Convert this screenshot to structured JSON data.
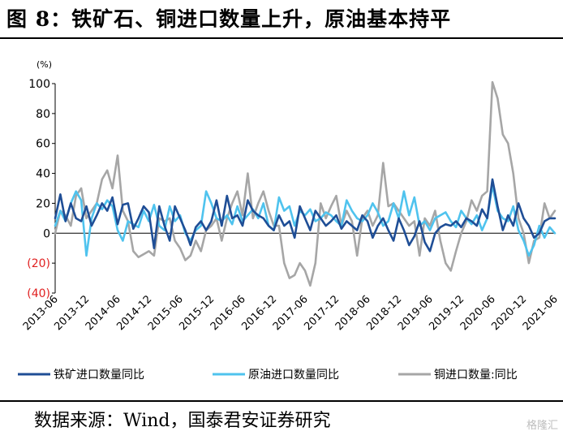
{
  "title": "图 8：铁矿石、铜进口数量上升，原油基本持平",
  "source": "数据来源：Wind，国泰君安证券研究",
  "watermark": "格隆汇",
  "chart_data": {
    "type": "line",
    "unit": "(%)",
    "ylim": [
      -40,
      100
    ],
    "yticks": [
      100,
      80,
      60,
      40,
      20,
      0,
      -20,
      -40
    ],
    "ytick_labels": [
      "100",
      "80",
      "60",
      "40",
      "20",
      "0",
      "(20)",
      "(40)"
    ],
    "xlim": [
      0,
      96
    ],
    "xtick_positions": [
      0,
      6,
      12,
      18,
      24,
      30,
      36,
      42,
      48,
      54,
      60,
      66,
      72,
      78,
      84,
      90,
      96
    ],
    "xtick_labels": [
      "2013-06",
      "2013-12",
      "2014-06",
      "2014-12",
      "2015-06",
      "2015-12",
      "2016-06",
      "2016-12",
      "2017-06",
      "2017-12",
      "2018-06",
      "2018-12",
      "2019-06",
      "2019-12",
      "2020-06",
      "2020-12",
      "2021-06"
    ],
    "grid": false,
    "legend_position": "bottom",
    "series": [
      {
        "name": "铁矿进口数量同比",
        "color": "#1f4e96",
        "values": [
          10,
          26,
          8,
          20,
          10,
          8,
          18,
          5,
          12,
          20,
          15,
          24,
          6,
          19,
          20,
          3,
          10,
          18,
          14,
          -10,
          18,
          5,
          -5,
          18,
          10,
          2,
          -8,
          4,
          8,
          2,
          8,
          22,
          5,
          25,
          10,
          12,
          5,
          22,
          15,
          12,
          10,
          5,
          2,
          12,
          5,
          8,
          -3,
          18,
          10,
          2,
          15,
          10,
          5,
          8,
          12,
          3,
          8,
          5,
          2,
          12,
          8,
          -3,
          5,
          10,
          2,
          -5,
          10,
          2,
          -8,
          -2,
          8,
          -6,
          -12,
          0,
          4,
          6,
          5,
          8,
          4,
          10,
          8,
          5,
          16,
          10,
          36,
          18,
          2,
          12,
          5,
          20,
          10,
          5,
          -3,
          0,
          8,
          10,
          10
        ]
      },
      {
        "name": "原油进口数量同比",
        "color": "#4fc3ee",
        "values": [
          5,
          15,
          8,
          20,
          28,
          22,
          -15,
          10,
          20,
          16,
          22,
          18,
          2,
          -5,
          8,
          6,
          4,
          15,
          8,
          19,
          5,
          2,
          18,
          8,
          12,
          0,
          -5,
          2,
          5,
          28,
          20,
          10,
          8,
          12,
          6,
          18,
          8,
          12,
          16,
          10,
          20,
          5,
          2,
          24,
          15,
          18,
          5,
          15,
          12,
          16,
          8,
          10,
          14,
          12,
          8,
          5,
          22,
          15,
          10,
          8,
          12,
          20,
          14,
          5,
          8,
          20,
          10,
          28,
          12,
          24,
          5,
          8,
          2,
          10,
          12,
          14,
          8,
          4,
          15,
          10,
          6,
          12,
          2,
          10,
          32,
          15,
          10,
          8,
          18,
          2,
          -5,
          -15,
          -8,
          5,
          -3,
          4,
          0
        ]
      },
      {
        "name": "铜进口数量:同比",
        "color": "#a6a6a6",
        "values": [
          0,
          15,
          12,
          5,
          25,
          30,
          10,
          15,
          20,
          36,
          42,
          30,
          52,
          15,
          8,
          -12,
          -16,
          -14,
          -12,
          -15,
          10,
          8,
          10,
          -5,
          -10,
          -18,
          -15,
          -5,
          -12,
          2,
          5,
          10,
          -5,
          10,
          20,
          28,
          12,
          40,
          10,
          20,
          28,
          15,
          5,
          5,
          -20,
          -30,
          -28,
          -20,
          -25,
          -35,
          -20,
          20,
          10,
          18,
          25,
          5,
          15,
          8,
          -15,
          10,
          15,
          5,
          12,
          47,
          18,
          20,
          15,
          10,
          5,
          8,
          -15,
          10,
          5,
          15,
          -5,
          -20,
          -25,
          -12,
          0,
          8,
          22,
          15,
          25,
          28,
          101,
          90,
          66,
          60,
          40,
          10,
          0,
          -20,
          -5,
          -3,
          20,
          10,
          15
        ]
      }
    ]
  }
}
